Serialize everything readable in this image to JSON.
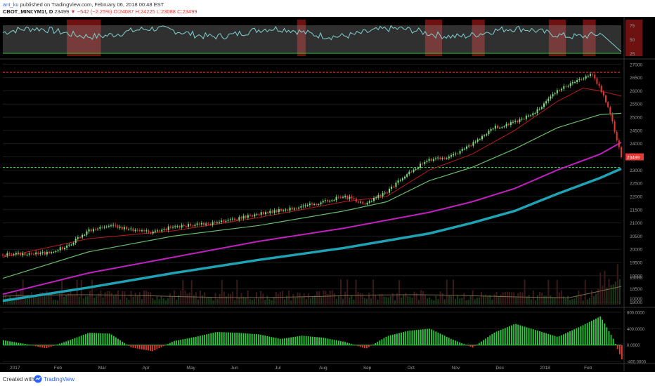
{
  "header": {
    "author": "ant_ku",
    "publish_text": "published on TradingView.com, February 06, 2018 00:48 EST",
    "symbol": "CBOT_MINI:YM1!, D",
    "last": "23499",
    "change": "▼ −542 (−2.25%)",
    "open": "O:24087",
    "high": "H:24225",
    "low": "L:23088",
    "close": "C:23499"
  },
  "footer": {
    "created_with": "Created with",
    "brand": "TradingView",
    "logo_icon": "tradingview-logo-icon"
  },
  "colors": {
    "background": "#000000",
    "up_candle": "#7ee07e",
    "down_candle": "#e53935",
    "ma_short": "#b71c1c",
    "ma_medium": "#66bb6a",
    "ma_long": "#c020c0",
    "ma_200": "#1fa3b4",
    "rsi_line": "#7fd1d1",
    "rsi_band": "#8a8a8a",
    "resistance_line": "#ff2a2a",
    "support_line": "#2ecc40",
    "hist_pos": "#2ecc40",
    "hist_neg": "#e53935"
  },
  "chart_data": [
    {
      "type": "line",
      "panel": "rsi",
      "y_ticks": [
        "75",
        "50",
        "25"
      ],
      "ylim": [
        20,
        85
      ],
      "overbought_zones_month_index": [
        [
          1.5,
          2.3
        ],
        [
          6.9,
          7.1
        ],
        [
          9.9,
          10.3
        ],
        [
          11.0,
          11.3
        ],
        [
          12.8,
          13.2
        ],
        [
          13.6,
          13.9
        ],
        [
          14.6,
          15.0
        ],
        [
          17.6,
          18.0
        ],
        [
          19.0,
          19.2
        ]
      ],
      "last_value": 28
    },
    {
      "type": "candlestick",
      "panel": "price",
      "x_ticks": [
        "2017",
        "Feb",
        "Mar",
        "Apr",
        "May",
        "Jun",
        "Jul",
        "Aug",
        "Sep",
        "Oct",
        "Nov",
        "Dec",
        "2018",
        "Feb"
      ],
      "y_ticks": [
        "27000",
        "26500",
        "26000",
        "25500",
        "25000",
        "24500",
        "24000",
        "23500",
        "23000",
        "22500",
        "22000",
        "21500",
        "21000",
        "20500",
        "20000",
        "19500",
        "19000",
        "18500",
        "18000"
      ],
      "ylim": [
        17800,
        27100
      ],
      "last_price_label": "23499",
      "resistance_level": 26700,
      "support_level": 23100,
      "series": [
        {
          "name": "Close",
          "month_index": [
            0,
            1,
            1.5,
            2,
            2.5,
            3,
            3.5,
            4,
            5,
            6,
            7,
            7.5,
            8,
            8.5,
            9,
            9.5,
            10,
            10.5,
            11,
            11.5,
            12,
            12.5,
            13,
            13.5,
            13.8,
            14,
            14.2,
            14.35,
            14.5
          ],
          "values": [
            19800,
            19850,
            20100,
            20700,
            20900,
            20750,
            20650,
            20850,
            21000,
            21350,
            21600,
            21800,
            22000,
            21750,
            22150,
            22900,
            23400,
            23500,
            24000,
            24600,
            24800,
            25200,
            26000,
            26400,
            26650,
            26100,
            25400,
            24400,
            23500
          ]
        },
        {
          "name": "MA short",
          "month_index": [
            0,
            2,
            4,
            6,
            8,
            9,
            10,
            11,
            12,
            13,
            13.6,
            14,
            14.5
          ],
          "values": [
            19700,
            20400,
            20700,
            21200,
            21800,
            22000,
            23000,
            23600,
            24500,
            25600,
            26100,
            26000,
            25800
          ]
        },
        {
          "name": "MA medium",
          "month_index": [
            0,
            2,
            4,
            6,
            8,
            9,
            10,
            11,
            12,
            13,
            14,
            14.5
          ],
          "values": [
            18900,
            19900,
            20500,
            20900,
            21450,
            21800,
            22600,
            23100,
            23800,
            24600,
            25100,
            25150
          ]
        },
        {
          "name": "MA long",
          "month_index": [
            0,
            2,
            4,
            6,
            8,
            10,
            11,
            12,
            13,
            14,
            14.5
          ],
          "values": [
            18300,
            19100,
            19700,
            20300,
            20800,
            21400,
            21800,
            22300,
            23000,
            23600,
            24050
          ]
        },
        {
          "name": "MA 200",
          "month_index": [
            0,
            2,
            4,
            6,
            8,
            10,
            11,
            12,
            13,
            14,
            14.5
          ],
          "values": [
            18050,
            18550,
            19100,
            19600,
            20050,
            20600,
            21000,
            21450,
            22100,
            22700,
            23050
          ]
        }
      ]
    },
    {
      "type": "bar",
      "panel": "volume",
      "y_ticks": [
        "15000",
        "10000"
      ],
      "note": "volume bars with moving average overlay"
    },
    {
      "type": "bar",
      "panel": "oscillator",
      "y_ticks": [
        "800.0000",
        "400.0000",
        "0.0000",
        "-400.0000"
      ],
      "ylim": [
        -450,
        850
      ],
      "month_index": [
        0,
        0.5,
        1,
        1.5,
        2,
        2.5,
        3,
        3.5,
        4,
        4.5,
        5,
        5.5,
        6,
        6.5,
        7,
        7.5,
        8,
        8.5,
        9,
        9.5,
        10,
        10.5,
        11,
        11.5,
        12,
        12.5,
        13,
        13.5,
        14,
        14.3,
        14.5
      ],
      "values": [
        120,
        30,
        -80,
        100,
        300,
        280,
        -60,
        -150,
        100,
        200,
        320,
        300,
        260,
        150,
        230,
        180,
        80,
        -90,
        220,
        350,
        400,
        150,
        -60,
        300,
        520,
        360,
        200,
        440,
        700,
        150,
        -350
      ]
    }
  ]
}
